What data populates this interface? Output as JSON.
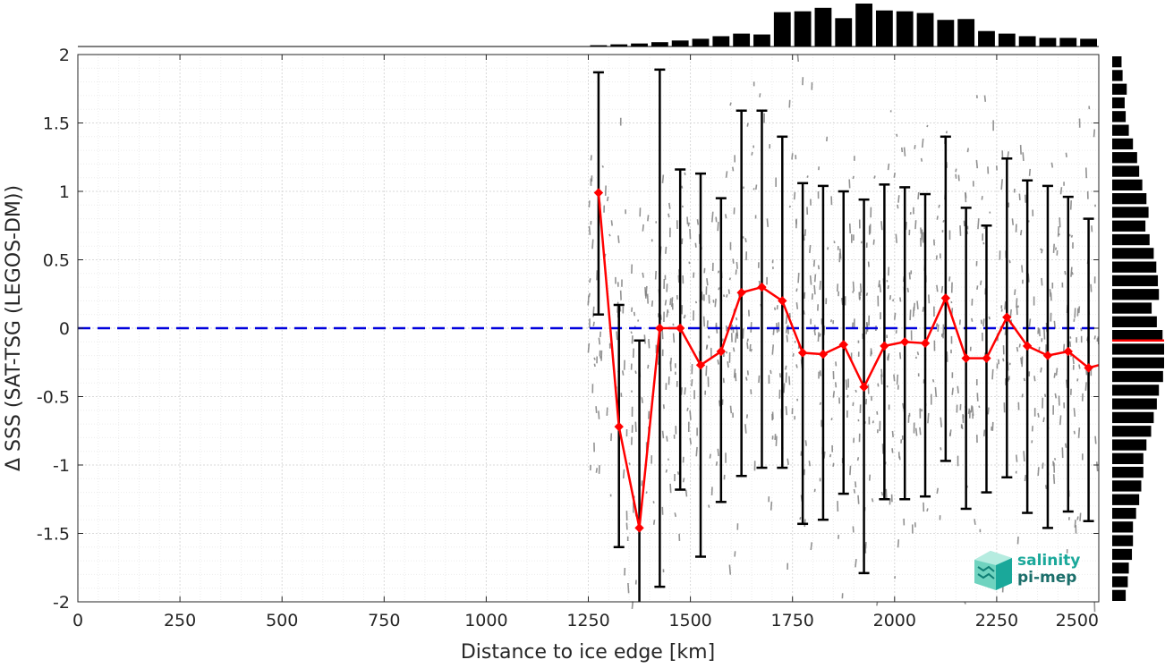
{
  "colors": {
    "mean_line": "#ff0000",
    "errorbar": "#000000",
    "scatter": "#808080",
    "zero_line": "#0000dd",
    "histogram": "#000000",
    "logo_teal": "#1aa89a",
    "logo_dark": "#1b6e6a"
  },
  "logo": {
    "line1": "salinity",
    "line2": "pi-mep"
  },
  "chart_data": {
    "type": "line",
    "xlabel": "Distance to ice edge [km]",
    "ylabel": "Δ SSS (SAT-TSG (LEGOS-DM))",
    "xlim": [
      0,
      2500
    ],
    "ylim": [
      -2,
      2
    ],
    "xticks": [
      0,
      250,
      500,
      750,
      1000,
      1250,
      1500,
      1750,
      2000,
      2250,
      2500
    ],
    "yticks": [
      -2,
      -1.5,
      -1,
      -0.5,
      0,
      0.5,
      1,
      1.5,
      2
    ],
    "ytick_labels": [
      "-2",
      "-1.5",
      "-1",
      "-0.5",
      "0",
      "0.5",
      "1",
      "1.5",
      "2"
    ],
    "grid": true,
    "reference_line": {
      "y": 0,
      "style": "dashed"
    },
    "series": [
      {
        "type": "line_with_errorbars",
        "x": [
          1275,
          1325,
          1375,
          1425,
          1475,
          1525,
          1575,
          1625,
          1675,
          1725,
          1775,
          1825,
          1875,
          1925,
          1975,
          2025,
          2075,
          2125,
          2175,
          2225,
          2275,
          2325,
          2375,
          2425,
          2475,
          2500
        ],
        "y": [
          0.99,
          -0.72,
          -1.46,
          0.0,
          0.0,
          -0.27,
          -0.17,
          0.26,
          0.3,
          0.2,
          -0.18,
          -0.19,
          -0.12,
          -0.43,
          -0.13,
          -0.1,
          -0.11,
          0.22,
          -0.22,
          -0.22,
          0.08,
          -0.13,
          -0.2,
          -0.17,
          -0.29,
          -0.27
        ],
        "err_low": [
          0.1,
          -1.6,
          -2.1,
          -1.89,
          -1.18,
          -1.67,
          -1.27,
          -1.08,
          -1.02,
          -1.02,
          -1.43,
          -1.4,
          -1.21,
          -1.79,
          -1.25,
          -1.25,
          -1.23,
          -0.97,
          -1.32,
          -1.2,
          -1.09,
          -1.35,
          -1.46,
          -1.34,
          -1.41,
          null
        ],
        "err_high": [
          1.87,
          0.17,
          -0.09,
          1.89,
          1.16,
          1.13,
          0.95,
          1.59,
          1.59,
          1.4,
          1.06,
          1.04,
          1.0,
          0.94,
          1.05,
          1.03,
          0.98,
          1.4,
          0.88,
          0.75,
          1.24,
          1.08,
          1.04,
          0.96,
          0.8,
          null
        ]
      }
    ],
    "top_histogram": {
      "bins_x": [
        1275,
        1325,
        1375,
        1425,
        1475,
        1525,
        1575,
        1625,
        1675,
        1725,
        1775,
        1825,
        1875,
        1925,
        1975,
        2025,
        2075,
        2125,
        2175,
        2225,
        2275,
        2325,
        2375,
        2425,
        2475
      ],
      "counts": [
        0.03,
        0.05,
        0.07,
        0.1,
        0.14,
        0.18,
        0.24,
        0.3,
        0.28,
        0.8,
        0.82,
        0.9,
        0.66,
        1.0,
        0.84,
        0.82,
        0.78,
        0.62,
        0.64,
        0.36,
        0.3,
        0.24,
        0.2,
        0.2,
        0.18
      ]
    },
    "right_histogram": {
      "bins_y": [
        1.95,
        1.85,
        1.75,
        1.65,
        1.55,
        1.45,
        1.35,
        1.25,
        1.15,
        1.05,
        0.95,
        0.85,
        0.75,
        0.65,
        0.55,
        0.45,
        0.35,
        0.25,
        0.15,
        0.05,
        -0.05,
        -0.15,
        -0.25,
        -0.35,
        -0.45,
        -0.55,
        -0.65,
        -0.75,
        -0.85,
        -0.95,
        -1.05,
        -1.15,
        -1.25,
        -1.35,
        -1.45,
        -1.55,
        -1.65,
        -1.75,
        -1.85,
        -1.95
      ],
      "counts": [
        0.18,
        0.2,
        0.28,
        0.24,
        0.26,
        0.32,
        0.4,
        0.48,
        0.52,
        0.58,
        0.66,
        0.7,
        0.64,
        0.72,
        0.8,
        0.85,
        0.88,
        0.9,
        0.76,
        0.86,
        0.97,
        1.0,
        1.0,
        0.98,
        0.9,
        0.86,
        0.8,
        0.75,
        0.66,
        0.6,
        0.6,
        0.56,
        0.52,
        0.46,
        0.4,
        0.4,
        0.38,
        0.32,
        0.3,
        0.26
      ],
      "median_y": -0.09
    }
  }
}
